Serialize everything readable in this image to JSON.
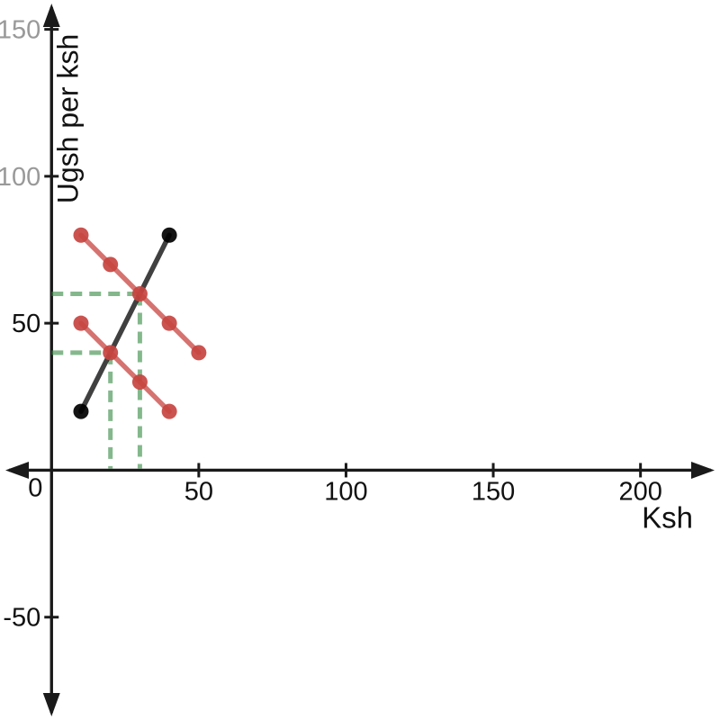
{
  "chart_data": {
    "type": "scatter",
    "title": "",
    "xlabel": "Ksh",
    "ylabel": "Ugsh per ksh",
    "origin_label": "0",
    "xlim": [
      -17.5,
      227
    ],
    "ylim": [
      -85,
      160
    ],
    "grid": false,
    "legend": "none",
    "x_ticks": [
      {
        "value": 50,
        "label": "50",
        "color": "#111111"
      },
      {
        "value": 100,
        "label": "100",
        "color": "#111111"
      },
      {
        "value": 150,
        "label": "150",
        "color": "#111111"
      },
      {
        "value": 200,
        "label": "200",
        "color": "#111111"
      }
    ],
    "y_ticks": [
      {
        "value": 150,
        "label": "150",
        "color": "#999999"
      },
      {
        "value": 100,
        "label": "100",
        "color": "#999999"
      },
      {
        "value": 50,
        "label": "50",
        "color": "#111111"
      },
      {
        "value": -50,
        "label": "-50",
        "color": "#111111"
      }
    ],
    "series": [
      {
        "name": "supply-line",
        "line_color": "rgba(0,0,0,0.75)",
        "point_color": "rgba(0,0,0,0.92)",
        "points": [
          [
            10,
            20
          ],
          [
            40,
            80
          ]
        ]
      },
      {
        "name": "demand-line-upper",
        "line_color": "rgba(199,68,64,0.75)",
        "point_color": "rgba(199,68,64,0.92)",
        "points": [
          [
            10,
            80
          ],
          [
            20,
            70
          ],
          [
            30,
            60
          ],
          [
            40,
            50
          ],
          [
            50,
            40
          ]
        ]
      },
      {
        "name": "demand-line-lower",
        "line_color": "rgba(199,68,64,0.75)",
        "point_color": "rgba(199,68,64,0.92)",
        "points": [
          [
            10,
            50
          ],
          [
            20,
            40
          ],
          [
            30,
            30
          ],
          [
            40,
            20
          ]
        ]
      }
    ],
    "guides": [
      {
        "name": "equilibrium-high-guide",
        "point": [
          30,
          60
        ],
        "color": "rgba(56,140,70,0.62)"
      },
      {
        "name": "equilibrium-low-guide",
        "point": [
          20,
          40
        ],
        "color": "rgba(56,140,70,0.62)"
      }
    ],
    "axis_color": "#1a1a1a",
    "xlabel_color": "#111111",
    "ylabel_color": "#111111"
  }
}
